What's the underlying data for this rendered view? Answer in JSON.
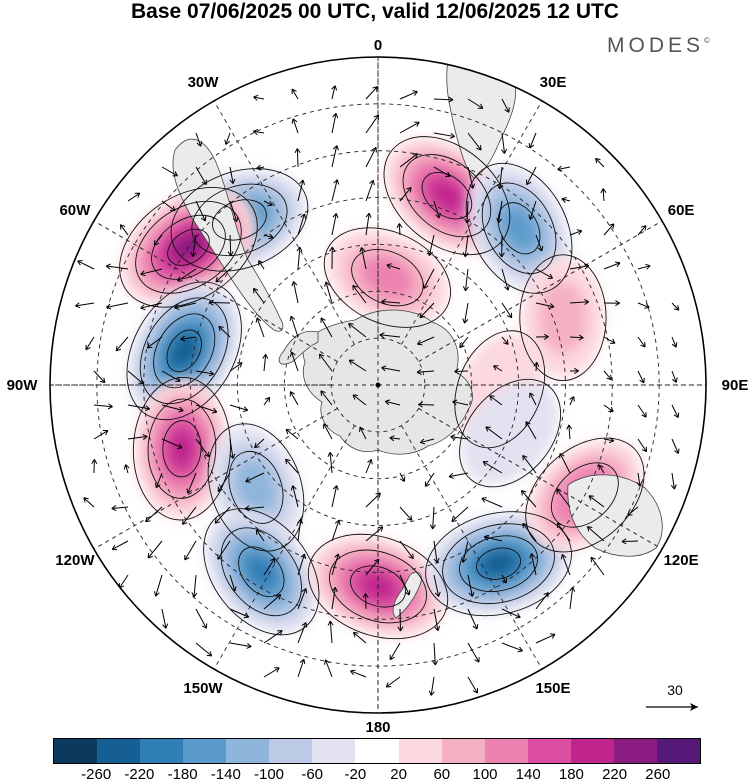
{
  "title": "Base 07/06/2025 00 UTC, valid 12/06/2025 12 UTC",
  "brand": "MODES",
  "brand_mark": "©",
  "map": {
    "projection": "south-polar-stereographic",
    "longitude_labels": [
      "0",
      "30E",
      "60E",
      "90E",
      "120E",
      "150E",
      "180",
      "150W",
      "120W",
      "90W",
      "60W",
      "30W"
    ],
    "grid": "dashed",
    "land_color": "#e8e8e8",
    "vector_reference_label": "30"
  },
  "colorbar": {
    "colors": [
      "#0b3a5e",
      "#155f93",
      "#2f7fb6",
      "#5b9bcb",
      "#8fb5db",
      "#bccae6",
      "#e2e2f1",
      "#ffffff",
      "#fcd9de",
      "#f6b0c4",
      "#ec82b1",
      "#dc4ea1",
      "#c0258e",
      "#8b1c81",
      "#551a77"
    ],
    "tick_labels": [
      "-260",
      "-220",
      "-180",
      "-140",
      "-100",
      "-60",
      "-20",
      "20",
      "60",
      "100",
      "140",
      "180",
      "220",
      "260"
    ]
  },
  "anomalies": [
    {
      "lon": 5,
      "lat": -67,
      "value": 120
    },
    {
      "lon": 20,
      "lat": -47,
      "value": 190
    },
    {
      "lon": 42,
      "lat": -45,
      "value": -160
    },
    {
      "lon": -40,
      "lat": -44,
      "value": -180
    },
    {
      "lon": -54,
      "lat": -40,
      "value": 250
    },
    {
      "lon": -80,
      "lat": -48,
      "value": -230
    },
    {
      "lon": -108,
      "lat": -46,
      "value": 190
    },
    {
      "lon": -130,
      "lat": -56,
      "value": -110
    },
    {
      "lon": -148,
      "lat": -43,
      "value": -180
    },
    {
      "lon": 180,
      "lat": -47,
      "value": 200
    },
    {
      "lon": 146,
      "lat": -44,
      "value": -230
    },
    {
      "lon": 118,
      "lat": -40,
      "value": 140
    },
    {
      "lon": 70,
      "lat": -48,
      "value": 70
    },
    {
      "lon": 92,
      "lat": -64,
      "value": 40
    },
    {
      "lon": 110,
      "lat": -60,
      "value": -40
    }
  ]
}
